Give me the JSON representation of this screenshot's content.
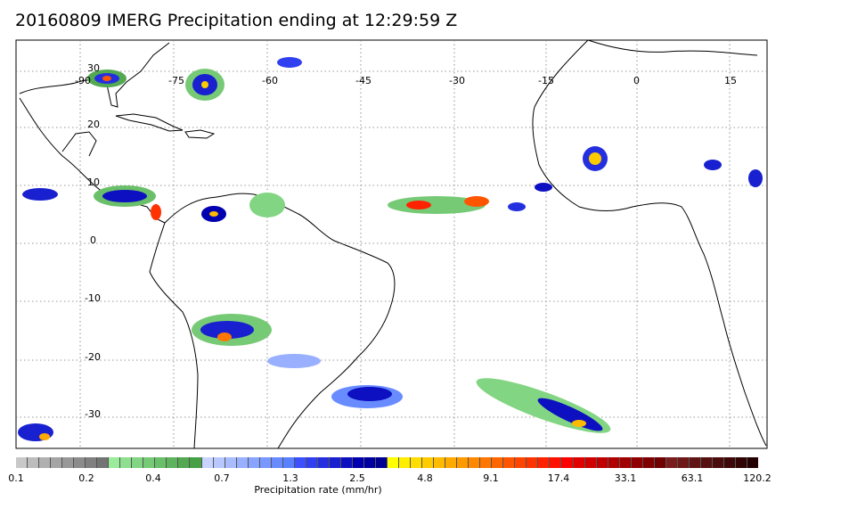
{
  "title": "20160809 IMERG Precipitation ending at 12:29:59 Z",
  "map": {
    "longitude_labels": [
      "-90",
      "-75",
      "-60",
      "-45",
      "-30",
      "-15",
      "0",
      "15"
    ],
    "latitude_labels": [
      "30",
      "20",
      "10",
      "0",
      "-10",
      "-20",
      "-30"
    ],
    "grid_style": "dotted",
    "land_color": "#ffffff",
    "coastline_color": "#000000"
  },
  "colorbar": {
    "unit_label": "Precipitation rate (mm/hr)",
    "tick_labels": [
      "0.1",
      "0.2",
      "0.4",
      "0.7",
      "1.3",
      "2.5",
      "4.8",
      "9.1",
      "17.4",
      "33.1",
      "63.1",
      "120.2"
    ],
    "colors": [
      "#c8c8c8",
      "#bcbcbc",
      "#b0b0b0",
      "#a4a4a4",
      "#989898",
      "#8c8c8c",
      "#808080",
      "#747474",
      "#9aeb9a",
      "#8ee08e",
      "#82d582",
      "#76ca76",
      "#6abf6a",
      "#5eb45e",
      "#52a952",
      "#46a046",
      "#c8d4ff",
      "#b8c8ff",
      "#a8bcff",
      "#98b0ff",
      "#88a4ff",
      "#7898ff",
      "#688cff",
      "#5880ff",
      "#3c50ff",
      "#3040f0",
      "#2430e0",
      "#1820d0",
      "#0c10c0",
      "#0000b0",
      "#0000a0",
      "#000090",
      "#ffff00",
      "#ffee00",
      "#ffdd00",
      "#ffcc00",
      "#ffbb00",
      "#ffaa00",
      "#ff9900",
      "#ff8800",
      "#ff7700",
      "#ff6600",
      "#ff5500",
      "#ff4400",
      "#ff3300",
      "#ff2200",
      "#ff1100",
      "#ff0000",
      "#e00000",
      "#d00000",
      "#c00000",
      "#b00000",
      "#a00000",
      "#900000",
      "#800000",
      "#700000",
      "#7a1c1c",
      "#6e1818",
      "#621414",
      "#561010",
      "#4a0c0c",
      "#3e0808",
      "#320404",
      "#260000"
    ]
  }
}
